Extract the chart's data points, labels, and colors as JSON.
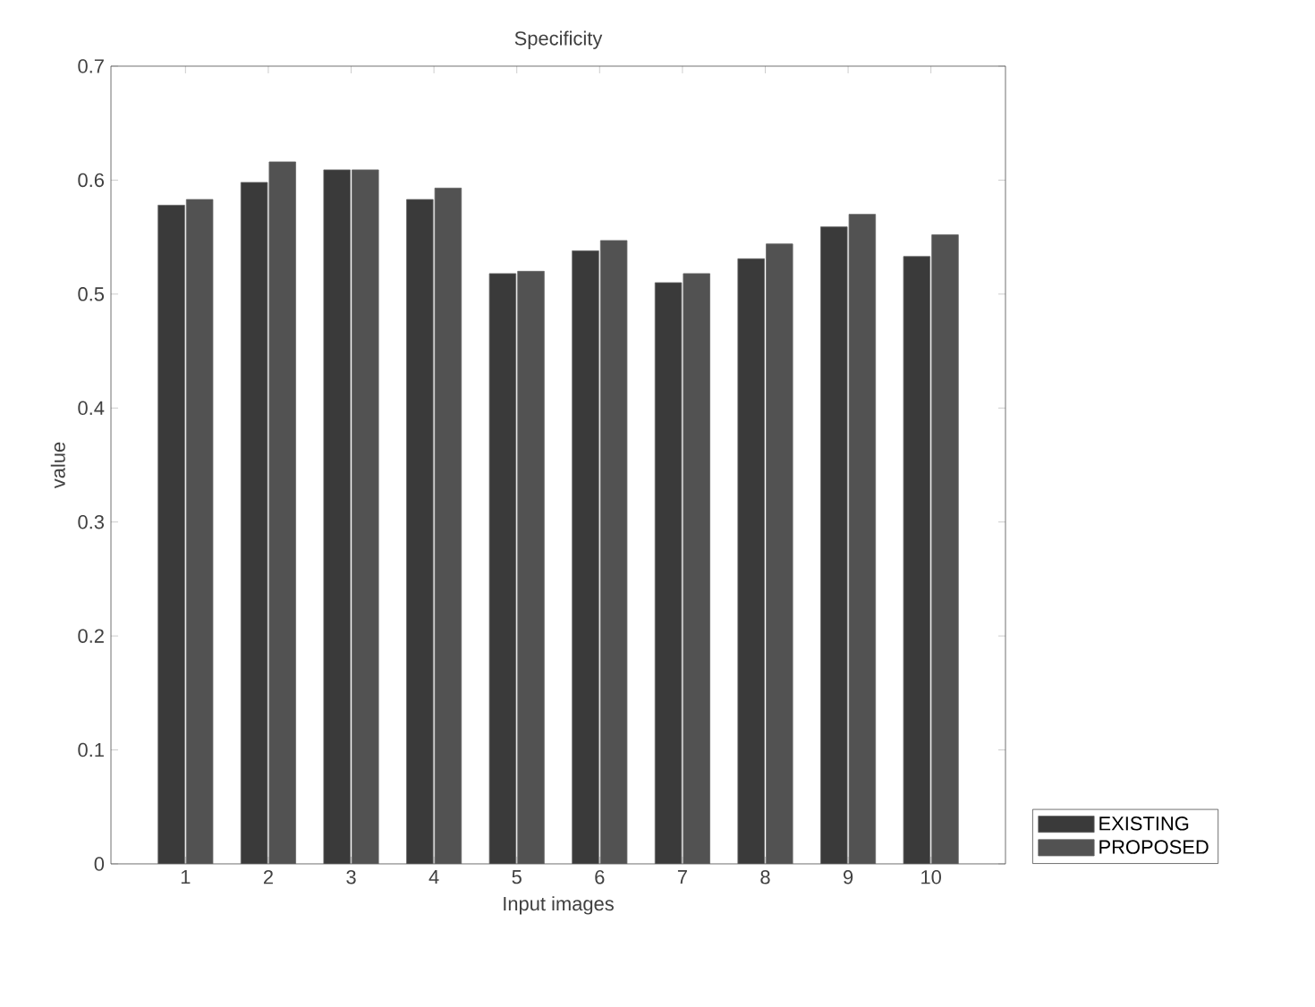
{
  "chart_data": {
    "type": "bar",
    "title": "Specificity",
    "xlabel": "Input images",
    "ylabel": "value",
    "categories": [
      "1",
      "2",
      "3",
      "4",
      "5",
      "6",
      "7",
      "8",
      "9",
      "10"
    ],
    "series": [
      {
        "name": "EXISTING",
        "color": "#3a3a3a",
        "values": [
          0.578,
          0.598,
          0.609,
          0.583,
          0.518,
          0.538,
          0.51,
          0.531,
          0.559,
          0.533
        ]
      },
      {
        "name": "PROPOSED",
        "color": "#525252",
        "values": [
          0.583,
          0.616,
          0.609,
          0.593,
          0.52,
          0.547,
          0.518,
          0.544,
          0.57,
          0.552
        ]
      }
    ],
    "ylim": [
      0,
      0.7
    ],
    "yticks": [
      0,
      0.1,
      0.2,
      0.3,
      0.4,
      0.5,
      0.6,
      0.7
    ],
    "legend": "bottom right"
  }
}
